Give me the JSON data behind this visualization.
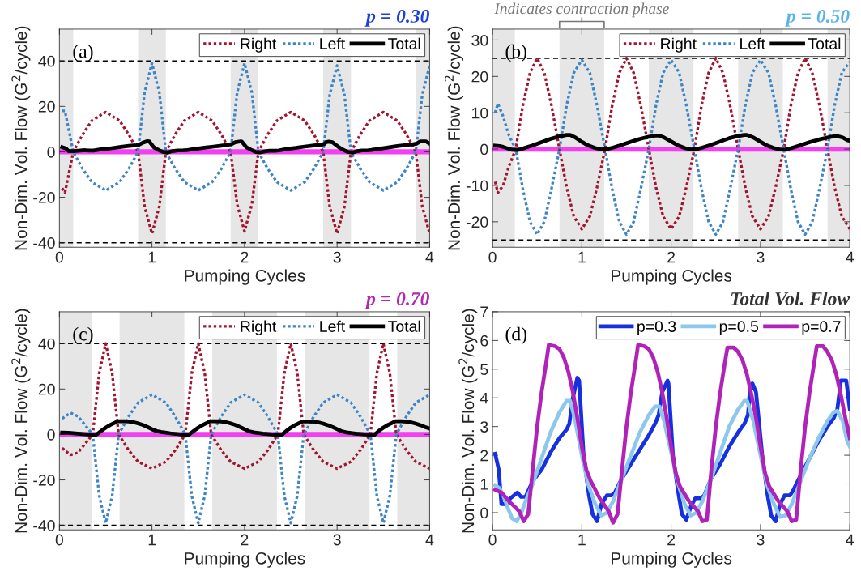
{
  "chart_data": [
    {
      "type": "line",
      "title": "p = 0.30",
      "xlabel": "Pumping Cycles",
      "ylabel": "Non-Dim. Vol. Flow (G$^{2}$/cycle)",
      "annotations": [
        "(a)"
      ],
      "legend": "top right",
      "xlim": [
        0,
        4
      ],
      "xticks": [
        0,
        1,
        2,
        3,
        4
      ],
      "ylim": [
        -42,
        54
      ],
      "yticks": [
        -40,
        -20,
        0,
        20,
        40
      ],
      "ref_lines": [
        {
          "axis": "y",
          "value": 40,
          "color": "#000000",
          "line_style": "dashed"
        },
        {
          "axis": "y",
          "value": -40,
          "color": "#000000",
          "line_style": "dashed"
        },
        {
          "axis": "y",
          "value": 0,
          "color": "#f23ff2",
          "line_style": "solid"
        }
      ],
      "bands": [
        {
          "axis": "x",
          "from": 0,
          "to": 0.15,
          "color": "#e6e6e6"
        },
        {
          "axis": "x",
          "from": 0.85,
          "to": 1.15,
          "color": "#e6e6e6"
        },
        {
          "axis": "x",
          "from": 1.85,
          "to": 2.15,
          "color": "#e6e6e6"
        },
        {
          "axis": "x",
          "from": 2.85,
          "to": 3.15,
          "color": "#e6e6e6"
        },
        {
          "axis": "x",
          "from": 3.85,
          "to": 4,
          "color": "#e6e6e6"
        }
      ],
      "x": [
        0.03,
        0.06,
        0.15,
        0.25,
        0.35,
        0.5,
        0.65,
        0.75,
        0.85,
        0.92,
        1.0,
        1.08,
        1.15,
        1.25,
        1.35,
        1.5,
        1.65,
        1.75,
        1.85,
        1.92,
        2.0,
        2.08,
        2.15,
        2.25,
        2.35,
        2.5,
        2.65,
        2.75,
        2.85,
        2.92,
        3.0,
        3.08,
        3.15,
        3.25,
        3.35,
        3.5,
        3.65,
        3.75,
        3.85,
        3.92,
        4.0
      ],
      "series": [
        {
          "name": "Right",
          "color": "#a2142f",
          "line_style": "dotted",
          "values": [
            -16,
            -18,
            0,
            7.6,
            13.7,
            17.5,
            13.7,
            7.6,
            0,
            -24,
            -36,
            -24,
            0,
            7.6,
            13.7,
            17.5,
            13.7,
            7.6,
            0,
            -23,
            -35,
            -23,
            0,
            7.6,
            13.7,
            17.5,
            13.7,
            7.6,
            0,
            -24,
            -36,
            -24,
            0,
            7.6,
            13.7,
            17.5,
            13.7,
            7.6,
            0,
            -24,
            -36
          ]
        },
        {
          "name": "Left",
          "color": "#3d85c6",
          "line_style": "dotted",
          "values": [
            18,
            18,
            0,
            -7.4,
            -13.3,
            -17,
            -13.3,
            -7.4,
            0,
            26,
            39,
            26,
            0,
            -7.4,
            -13.3,
            -17,
            -13.3,
            -7.4,
            0,
            26,
            39,
            26,
            0,
            -7.4,
            -13.3,
            -17,
            -13.3,
            -7.4,
            0,
            25,
            38,
            25,
            0,
            -7.4,
            -13.3,
            -17,
            -13.3,
            -7.4,
            0,
            25,
            38
          ]
        },
        {
          "name": "Total",
          "color": "#000000",
          "line_style": "solid",
          "x": [
            0.03,
            0.07,
            0.1,
            0.15,
            0.2,
            0.28,
            0.32,
            0.37,
            0.45,
            0.55,
            0.65,
            0.75,
            0.83,
            0.86,
            0.9,
            0.95,
            0.97,
            1.02,
            1.08,
            1.12,
            1.17,
            1.22,
            1.28,
            1.33,
            1.37,
            1.45,
            1.55,
            1.65,
            1.75,
            1.82,
            1.86,
            1.9,
            1.96,
            1.97,
            2.02,
            2.08,
            2.12,
            2.17,
            2.22,
            2.27,
            2.33,
            2.37,
            2.45,
            2.55,
            2.65,
            2.75,
            2.82,
            2.86,
            2.88,
            2.91,
            2.95,
            3.02,
            3.08,
            3.12,
            3.17,
            3.22,
            3.27,
            3.33,
            3.37,
            3.45,
            3.55,
            3.65,
            3.75,
            3.82,
            3.86,
            3.9,
            3.96,
            4.0
          ],
          "values": [
            2.05,
            1.5,
            0.3,
            0.3,
            0.5,
            0.7,
            0.55,
            0.55,
            1.1,
            1.5,
            2.1,
            2.6,
            2.9,
            3.1,
            4.0,
            4.7,
            4.6,
            2.0,
            0.6,
            -0.05,
            -0.3,
            0.3,
            0.6,
            0.6,
            0.7,
            1.2,
            1.7,
            2.2,
            2.7,
            3.1,
            3.4,
            4.2,
            4.6,
            4.5,
            2.0,
            0.7,
            -0.05,
            -0.25,
            0.2,
            0.5,
            0.5,
            0.6,
            1.2,
            1.7,
            2.3,
            2.8,
            3.1,
            3.4,
            4.2,
            4.5,
            4.2,
            2.0,
            0.6,
            -0.1,
            -0.3,
            0.3,
            0.6,
            0.6,
            0.8,
            1.3,
            1.9,
            2.5,
            3.0,
            3.3,
            3.6,
            4.6,
            4.6,
            3.6
          ]
        }
      ]
    },
    {
      "type": "line",
      "title": "p = 0.50",
      "xlabel": "Pumping Cycles",
      "ylabel": "Non-Dim. Vol. Flow (G$^{2}$/cycle)",
      "annotations": [
        "(b)",
        "Indicates contraction phase"
      ],
      "legend": "top right",
      "xlim": [
        0,
        4
      ],
      "xticks": [
        0,
        1,
        2,
        3,
        4
      ],
      "ylim": [
        -27,
        33
      ],
      "yticks": [
        -20,
        -10,
        0,
        10,
        20,
        30
      ],
      "ref_lines": [
        {
          "axis": "y",
          "value": 25,
          "color": "#000000",
          "line_style": "dashed"
        },
        {
          "axis": "y",
          "value": -25,
          "color": "#000000",
          "line_style": "dashed"
        },
        {
          "axis": "y",
          "value": 0,
          "color": "#f23ff2",
          "line_style": "solid"
        }
      ],
      "bands": [
        {
          "axis": "x",
          "from": 0,
          "to": 0.25,
          "color": "#e6e6e6"
        },
        {
          "axis": "x",
          "from": 0.75,
          "to": 1.25,
          "color": "#e6e6e6"
        },
        {
          "axis": "x",
          "from": 1.75,
          "to": 2.25,
          "color": "#e6e6e6"
        },
        {
          "axis": "x",
          "from": 2.75,
          "to": 3.25,
          "color": "#e6e6e6"
        },
        {
          "axis": "x",
          "from": 3.75,
          "to": 4,
          "color": "#e6e6e6"
        }
      ],
      "x": [
        0.03,
        0.06,
        0.12,
        0.18,
        0.26,
        0.34,
        0.42,
        0.5,
        0.58,
        0.66,
        0.75,
        0.83,
        0.91,
        1.0,
        1.09,
        1.17,
        1.26,
        1.34,
        1.42,
        1.5,
        1.58,
        1.66,
        1.75,
        1.83,
        1.91,
        2.0,
        2.09,
        2.17,
        2.26,
        2.34,
        2.42,
        2.5,
        2.58,
        2.66,
        2.75,
        2.83,
        2.91,
        3.0,
        3.09,
        3.17,
        3.26,
        3.34,
        3.42,
        3.5,
        3.58,
        3.66,
        3.75,
        3.83,
        3.91,
        4.0
      ],
      "series": [
        {
          "name": "Right",
          "color": "#a2142f",
          "line_style": "dotted",
          "values": [
            -9,
            -12,
            -10,
            -5,
            0,
            12,
            21,
            25,
            21,
            12,
            0,
            -10.5,
            -18.5,
            -22,
            -18.5,
            -10.5,
            0,
            12,
            21,
            25,
            21,
            12,
            0,
            -10.5,
            -18.5,
            -22,
            -18.5,
            -10.5,
            0,
            12,
            21,
            25,
            21,
            12,
            0,
            -10.5,
            -18.5,
            -22,
            -18.5,
            -10.5,
            0,
            12,
            21,
            25,
            21,
            12,
            0,
            -10.5,
            -18.5,
            -22
          ]
        },
        {
          "name": "Left",
          "color": "#3d85c6",
          "line_style": "dotted",
          "values": [
            10,
            12.5,
            9,
            4,
            0,
            -11,
            -20,
            -23.5,
            -20,
            -11,
            0,
            12,
            21,
            24.5,
            21,
            12,
            0,
            -11,
            -20,
            -23.5,
            -20,
            -11,
            0,
            12,
            21,
            24.5,
            21,
            12,
            0,
            -11,
            -20,
            -23.5,
            -20,
            -11,
            0,
            12,
            21,
            24.5,
            21,
            12,
            0,
            -11,
            -20,
            -23.5,
            -20,
            -11,
            0,
            12,
            21,
            24
          ]
        },
        {
          "name": "Total",
          "color": "#000000",
          "line_style": "solid",
          "x": [
            0.03,
            0.08,
            0.12,
            0.18,
            0.22,
            0.27,
            0.32,
            0.37,
            0.45,
            0.55,
            0.65,
            0.75,
            0.83,
            0.87,
            0.92,
            1.0,
            1.07,
            1.15,
            1.22,
            1.28,
            1.35,
            1.45,
            1.55,
            1.65,
            1.75,
            1.82,
            1.87,
            1.92,
            2.0,
            2.07,
            2.15,
            2.22,
            2.28,
            2.35,
            2.45,
            2.55,
            2.65,
            2.75,
            2.82,
            2.85,
            2.92,
            3.0,
            3.07,
            3.15,
            3.22,
            3.28,
            3.35,
            3.45,
            3.55,
            3.65,
            3.75,
            3.82,
            3.86,
            3.92,
            3.97,
            4.0
          ],
          "values": [
            0.95,
            0.85,
            0.6,
            0.1,
            -0.2,
            -0.3,
            -0.05,
            0.4,
            1.0,
            1.9,
            2.8,
            3.5,
            3.9,
            3.9,
            3.3,
            2.0,
            1.0,
            0.3,
            -0.1,
            0.0,
            0.4,
            1.2,
            2.0,
            2.8,
            3.4,
            3.7,
            3.7,
            3.2,
            2.1,
            1.1,
            0.3,
            -0.1,
            0.0,
            0.4,
            1.2,
            2.1,
            3.0,
            3.6,
            3.9,
            3.9,
            3.2,
            2.0,
            1.0,
            0.3,
            -0.15,
            -0.1,
            0.3,
            1.1,
            1.9,
            2.6,
            3.2,
            3.5,
            3.55,
            3.2,
            2.5,
            2.3
          ]
        }
      ]
    },
    {
      "type": "line",
      "title": "p = 0.70",
      "xlabel": "Pumping Cycles",
      "ylabel": "Non-Dim. Vol. Flow (G$^{2}$/cycle)",
      "annotations": [
        "(c)"
      ],
      "legend": "top right",
      "xlim": [
        0,
        4
      ],
      "xticks": [
        0,
        1,
        2,
        3,
        4
      ],
      "ylim": [
        -42,
        54
      ],
      "yticks": [
        -40,
        -20,
        0,
        20,
        40
      ],
      "ref_lines": [
        {
          "axis": "y",
          "value": 40,
          "color": "#000000",
          "line_style": "dashed"
        },
        {
          "axis": "y",
          "value": -40,
          "color": "#000000",
          "line_style": "dashed"
        },
        {
          "axis": "y",
          "value": 0,
          "color": "#f23ff2",
          "line_style": "solid"
        }
      ],
      "bands": [
        {
          "axis": "x",
          "from": 0,
          "to": 0.35,
          "color": "#e6e6e6"
        },
        {
          "axis": "x",
          "from": 0.65,
          "to": 1.35,
          "color": "#e6e6e6"
        },
        {
          "axis": "x",
          "from": 1.65,
          "to": 2.35,
          "color": "#e6e6e6"
        },
        {
          "axis": "x",
          "from": 2.65,
          "to": 3.35,
          "color": "#e6e6e6"
        },
        {
          "axis": "x",
          "from": 3.65,
          "to": 4,
          "color": "#e6e6e6"
        }
      ],
      "x": [
        0.03,
        0.12,
        0.2,
        0.28,
        0.36,
        0.43,
        0.5,
        0.57,
        0.64,
        0.75,
        0.85,
        1.0,
        1.15,
        1.25,
        1.36,
        1.43,
        1.5,
        1.57,
        1.64,
        1.75,
        1.85,
        2.0,
        2.15,
        2.25,
        2.36,
        2.43,
        2.5,
        2.57,
        2.64,
        2.75,
        2.85,
        3.0,
        3.15,
        3.25,
        3.36,
        3.43,
        3.5,
        3.57,
        3.64,
        3.75,
        3.85,
        4.0
      ],
      "series": [
        {
          "name": "Right",
          "color": "#a2142f",
          "line_style": "dotted",
          "values": [
            -6,
            -9,
            -8,
            -4,
            0,
            27,
            40,
            27,
            0,
            -7,
            -12,
            -15,
            -12,
            -7,
            0,
            27,
            40,
            27,
            0,
            -7,
            -12,
            -15,
            -12,
            -7,
            0,
            27,
            40,
            27,
            0,
            -7,
            -12,
            -15,
            -12,
            -7,
            0,
            27,
            40,
            27,
            0,
            -7,
            -12,
            -15
          ]
        },
        {
          "name": "Left",
          "color": "#3d85c6",
          "line_style": "dotted",
          "values": [
            7,
            9.5,
            8,
            4,
            0,
            -27,
            -39,
            -27,
            0,
            8,
            14,
            17.5,
            14,
            8,
            0,
            -27,
            -39,
            -27,
            0,
            8,
            14,
            17.5,
            14,
            8,
            0,
            -27,
            -39,
            -27,
            0,
            8,
            14,
            17.5,
            14,
            8,
            0,
            -27,
            -39,
            -27,
            0,
            8,
            14,
            17.5
          ]
        },
        {
          "name": "Total",
          "color": "#000000",
          "line_style": "solid",
          "x": [
            0.03,
            0.1,
            0.2,
            0.3,
            0.35,
            0.4,
            0.45,
            0.5,
            0.55,
            0.6,
            0.63,
            0.7,
            0.75,
            0.8,
            0.85,
            0.9,
            0.95,
            1.0,
            1.05,
            1.1,
            1.2,
            1.3,
            1.35,
            1.4,
            1.45,
            1.5,
            1.55,
            1.6,
            1.63,
            1.7,
            1.75,
            1.8,
            1.85,
            1.9,
            1.95,
            2.0,
            2.05,
            2.1,
            2.2,
            2.3,
            2.35,
            2.4,
            2.45,
            2.5,
            2.55,
            2.6,
            2.63,
            2.7,
            2.75,
            2.8,
            2.85,
            2.9,
            2.95,
            3.0,
            3.05,
            3.1,
            3.2,
            3.3,
            3.35,
            3.4,
            3.45,
            3.5,
            3.55,
            3.6,
            3.63,
            3.7,
            3.75,
            3.8,
            3.85,
            3.9,
            3.95,
            4.0
          ],
          "values": [
            0.8,
            0.7,
            0.35,
            0.05,
            -0.3,
            -0.05,
            1.5,
            3.0,
            4.2,
            5.2,
            5.85,
            5.8,
            5.7,
            5.4,
            4.9,
            4.2,
            3.3,
            2.3,
            1.5,
            1.1,
            0.5,
            0.05,
            -0.35,
            -0.05,
            1.5,
            3.0,
            4.2,
            5.2,
            5.85,
            5.8,
            5.7,
            5.4,
            4.9,
            4.2,
            3.3,
            2.3,
            1.4,
            0.9,
            0.4,
            0.05,
            -0.3,
            -0.25,
            1.5,
            3.0,
            4.2,
            5.2,
            5.75,
            5.75,
            5.6,
            5.3,
            4.8,
            4.1,
            3.3,
            2.3,
            1.4,
            0.9,
            0.4,
            0.05,
            -0.3,
            -0.25,
            1.5,
            3.0,
            4.2,
            5.2,
            5.8,
            5.8,
            5.6,
            5.3,
            4.8,
            4.1,
            3.3,
            2.6
          ]
        }
      ]
    },
    {
      "type": "line",
      "title": "Total Vol. Flow",
      "xlabel": "Pumping Cycles",
      "ylabel": "Non-Dim. Vol. Flow (G$^{2}$/cycle)",
      "annotations": [
        "(d)"
      ],
      "legend": "top right",
      "xlim": [
        0,
        4
      ],
      "xticks": [
        0,
        1,
        2,
        3,
        4
      ],
      "ylim": [
        -0.6,
        7
      ],
      "yticks": [
        0,
        1,
        2,
        3,
        4,
        5,
        6,
        7
      ],
      "series": [
        {
          "name": "p=0.3",
          "color": "#1530e0",
          "line_style": "solid",
          "x": [
            0.03,
            0.07,
            0.1,
            0.15,
            0.2,
            0.28,
            0.32,
            0.37,
            0.45,
            0.55,
            0.65,
            0.75,
            0.83,
            0.86,
            0.9,
            0.95,
            0.97,
            1.02,
            1.08,
            1.12,
            1.17,
            1.22,
            1.28,
            1.33,
            1.37,
            1.45,
            1.55,
            1.65,
            1.75,
            1.82,
            1.86,
            1.9,
            1.96,
            1.97,
            2.02,
            2.08,
            2.12,
            2.17,
            2.22,
            2.27,
            2.33,
            2.37,
            2.45,
            2.55,
            2.65,
            2.75,
            2.82,
            2.86,
            2.88,
            2.91,
            2.95,
            3.02,
            3.08,
            3.12,
            3.17,
            3.22,
            3.27,
            3.33,
            3.37,
            3.45,
            3.55,
            3.65,
            3.75,
            3.82,
            3.86,
            3.9,
            3.96,
            4.0
          ],
          "values": [
            2.05,
            1.5,
            0.3,
            0.3,
            0.5,
            0.7,
            0.55,
            0.55,
            1.1,
            1.5,
            2.1,
            2.6,
            2.9,
            3.1,
            4.0,
            4.7,
            4.6,
            2.0,
            0.6,
            -0.05,
            -0.3,
            0.3,
            0.6,
            0.6,
            0.7,
            1.2,
            1.7,
            2.2,
            2.7,
            3.1,
            3.4,
            4.2,
            4.6,
            4.5,
            2.0,
            0.7,
            -0.05,
            -0.25,
            0.2,
            0.5,
            0.5,
            0.6,
            1.2,
            1.7,
            2.3,
            2.8,
            3.1,
            3.4,
            4.2,
            4.5,
            4.2,
            2.0,
            0.6,
            -0.1,
            -0.3,
            0.3,
            0.6,
            0.6,
            0.8,
            1.3,
            1.9,
            2.5,
            3.0,
            3.3,
            3.6,
            4.6,
            4.6,
            3.6
          ]
        },
        {
          "name": "p=0.5",
          "color": "#8dc8ec",
          "line_style": "solid",
          "x": [
            0.03,
            0.08,
            0.12,
            0.18,
            0.22,
            0.27,
            0.32,
            0.37,
            0.45,
            0.55,
            0.65,
            0.75,
            0.83,
            0.87,
            0.92,
            1.0,
            1.07,
            1.15,
            1.22,
            1.28,
            1.35,
            1.45,
            1.55,
            1.65,
            1.75,
            1.82,
            1.87,
            1.92,
            2.0,
            2.07,
            2.15,
            2.22,
            2.28,
            2.35,
            2.45,
            2.55,
            2.65,
            2.75,
            2.82,
            2.85,
            2.92,
            3.0,
            3.07,
            3.15,
            3.22,
            3.28,
            3.35,
            3.45,
            3.55,
            3.65,
            3.75,
            3.82,
            3.86,
            3.92,
            3.97,
            4.0
          ],
          "values": [
            0.95,
            0.85,
            0.6,
            0.1,
            -0.2,
            -0.3,
            -0.05,
            0.4,
            1.0,
            1.9,
            2.8,
            3.5,
            3.9,
            3.9,
            3.3,
            2.0,
            1.0,
            0.3,
            -0.1,
            0.0,
            0.4,
            1.2,
            2.0,
            2.8,
            3.4,
            3.7,
            3.7,
            3.2,
            2.1,
            1.1,
            0.3,
            -0.1,
            0.0,
            0.4,
            1.2,
            2.1,
            3.0,
            3.6,
            3.9,
            3.9,
            3.2,
            2.0,
            1.0,
            0.3,
            -0.15,
            -0.1,
            0.3,
            1.1,
            1.9,
            2.6,
            3.2,
            3.5,
            3.55,
            3.2,
            2.5,
            2.3
          ]
        },
        {
          "name": "p=0.7",
          "color": "#b022b8",
          "line_style": "solid",
          "x": [
            0.03,
            0.1,
            0.2,
            0.3,
            0.35,
            0.4,
            0.45,
            0.5,
            0.55,
            0.6,
            0.63,
            0.7,
            0.75,
            0.8,
            0.85,
            0.9,
            0.95,
            1.0,
            1.05,
            1.1,
            1.2,
            1.3,
            1.35,
            1.4,
            1.45,
            1.5,
            1.55,
            1.6,
            1.63,
            1.7,
            1.75,
            1.8,
            1.85,
            1.9,
            1.95,
            2.0,
            2.05,
            2.1,
            2.2,
            2.3,
            2.35,
            2.4,
            2.45,
            2.5,
            2.55,
            2.6,
            2.63,
            2.7,
            2.75,
            2.8,
            2.85,
            2.9,
            2.95,
            3.0,
            3.05,
            3.1,
            3.2,
            3.3,
            3.35,
            3.4,
            3.45,
            3.5,
            3.55,
            3.6,
            3.63,
            3.7,
            3.75,
            3.8,
            3.85,
            3.9,
            3.95,
            4.0
          ],
          "values": [
            0.8,
            0.7,
            0.35,
            0.05,
            -0.3,
            -0.05,
            1.5,
            3.0,
            4.2,
            5.2,
            5.85,
            5.8,
            5.7,
            5.4,
            4.9,
            4.2,
            3.3,
            2.3,
            1.5,
            1.1,
            0.5,
            0.05,
            -0.35,
            -0.05,
            1.5,
            3.0,
            4.2,
            5.2,
            5.85,
            5.8,
            5.7,
            5.4,
            4.9,
            4.2,
            3.3,
            2.3,
            1.4,
            0.9,
            0.4,
            0.05,
            -0.3,
            -0.25,
            1.5,
            3.0,
            4.2,
            5.2,
            5.75,
            5.75,
            5.6,
            5.3,
            4.8,
            4.1,
            3.3,
            2.3,
            1.4,
            0.9,
            0.4,
            0.05,
            -0.3,
            -0.25,
            1.5,
            3.0,
            4.2,
            5.2,
            5.8,
            5.8,
            5.6,
            5.3,
            4.8,
            4.1,
            3.3,
            2.6
          ]
        }
      ]
    }
  ]
}
